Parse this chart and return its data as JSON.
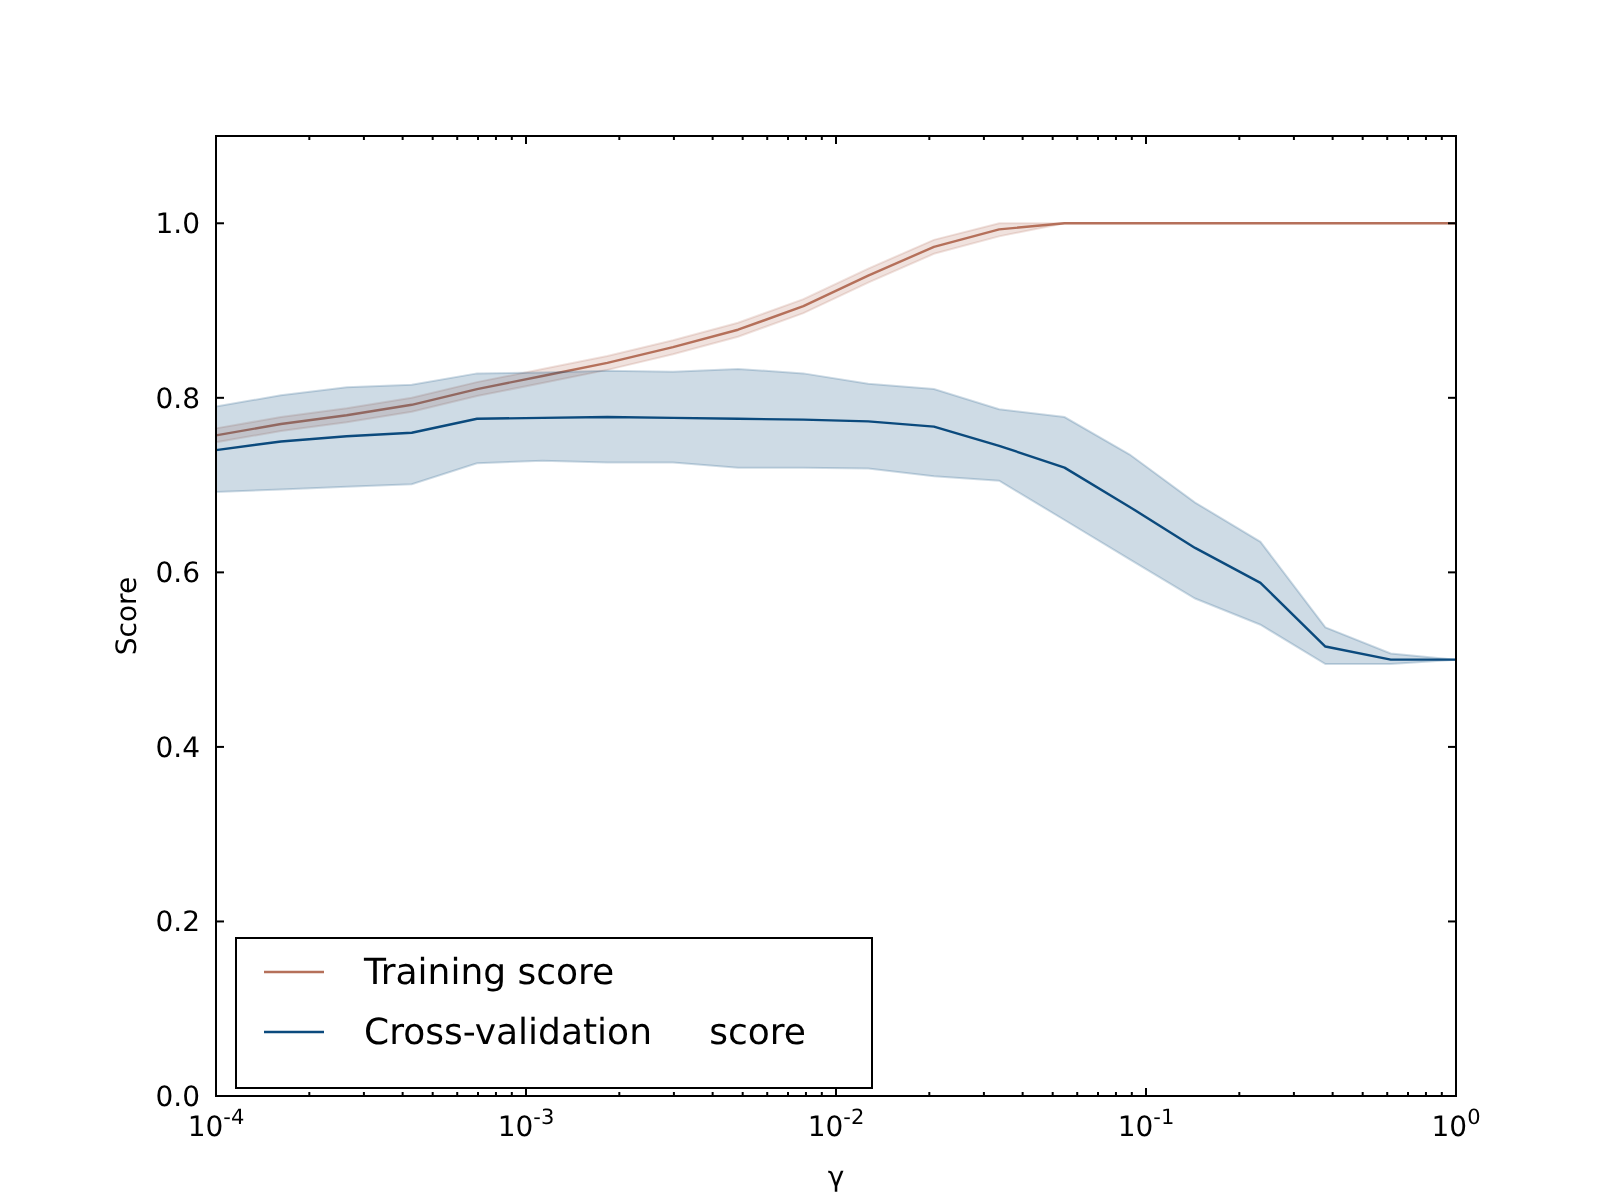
{
  "chart_data": {
    "type": "line",
    "xlabel": "γ",
    "ylabel": "Score",
    "log": "x",
    "xlim": [
      0.0001,
      1
    ],
    "ylim": [
      0,
      1.1
    ],
    "xticks": [
      {
        "value": 0.0001,
        "label": "10$^{-4}$"
      },
      {
        "value": 0.0002,
        "label": null
      },
      {
        "value": 0.0003,
        "label": null
      },
      {
        "value": 0.0004,
        "label": null
      },
      {
        "value": 0.0005,
        "label": null
      },
      {
        "value": 0.0006,
        "label": null
      },
      {
        "value": 0.0007,
        "label": null
      },
      {
        "value": 0.0008,
        "label": null
      },
      {
        "value": 0.0009,
        "label": null
      },
      {
        "value": 0.001,
        "label": "10$^{-3}$"
      },
      {
        "value": 0.002,
        "label": null
      },
      {
        "value": 0.003,
        "label": null
      },
      {
        "value": 0.004,
        "label": null
      },
      {
        "value": 0.005,
        "label": null
      },
      {
        "value": 0.006,
        "label": null
      },
      {
        "value": 0.007,
        "label": null
      },
      {
        "value": 0.008,
        "label": null
      },
      {
        "value": 0.009,
        "label": null
      },
      {
        "value": 0.01,
        "label": "10$^{-2}$"
      },
      {
        "value": 0.02,
        "label": null
      },
      {
        "value": 0.03,
        "label": null
      },
      {
        "value": 0.04,
        "label": null
      },
      {
        "value": 0.05,
        "label": null
      },
      {
        "value": 0.06,
        "label": null
      },
      {
        "value": 0.07,
        "label": null
      },
      {
        "value": 0.08,
        "label": null
      },
      {
        "value": 0.09,
        "label": null
      },
      {
        "value": 0.1,
        "label": "10$^{-1}$"
      },
      {
        "value": 0.2,
        "label": null
      },
      {
        "value": 0.3,
        "label": null
      },
      {
        "value": 0.4,
        "label": null
      },
      {
        "value": 0.5,
        "label": null
      },
      {
        "value": 0.6,
        "label": null
      },
      {
        "value": 0.7,
        "label": null
      },
      {
        "value": 0.8,
        "label": null
      },
      {
        "value": 0.9,
        "label": null
      },
      {
        "value": 1,
        "label": "10$^{0}$"
      }
    ],
    "yticks": [
      {
        "value": 0,
        "label": "0.0"
      },
      {
        "value": 0.2,
        "label": "0.2"
      },
      {
        "value": 0.4,
        "label": "0.4"
      },
      {
        "value": 0.6,
        "label": "0.6"
      },
      {
        "value": 0.8,
        "label": "0.8"
      },
      {
        "value": 1,
        "label": "1.0"
      }
    ],
    "x": [
      0.0001,
      0.000162,
      0.000264,
      0.000428,
      0.000695,
      0.00113,
      0.00183,
      0.00298,
      0.00483,
      0.00785,
      0.0127,
      0.0207,
      0.0336,
      0.0546,
      0.0886,
      0.144,
      0.234,
      0.379,
      0.616,
      1
    ],
    "legend": "bottom left",
    "grid": false,
    "marker": "none",
    "line_style": "solid",
    "series": [
      {
        "name": "Training score",
        "color": "#b5705a",
        "values": [
          0.757,
          0.77,
          0.78,
          0.792,
          0.81,
          0.825,
          0.84,
          0.858,
          0.878,
          0.905,
          0.94,
          0.973,
          0.993,
          1,
          1,
          1,
          1,
          1,
          1,
          1
        ],
        "lower": [
          0.749,
          0.762,
          0.772,
          0.784,
          0.802,
          0.817,
          0.832,
          0.85,
          0.87,
          0.897,
          0.932,
          0.965,
          0.985,
          1,
          1,
          1,
          1,
          1,
          1,
          1
        ],
        "upper": [
          0.765,
          0.778,
          0.788,
          0.8,
          0.818,
          0.833,
          0.848,
          0.866,
          0.886,
          0.913,
          0.948,
          0.981,
          1,
          1,
          1,
          1,
          1,
          1,
          1,
          1
        ]
      },
      {
        "name": "Cross-validation     score",
        "color": "#0b4a7d",
        "values": [
          0.74,
          0.75,
          0.756,
          0.76,
          0.776,
          0.777,
          0.778,
          0.777,
          0.776,
          0.775,
          0.773,
          0.767,
          0.745,
          0.72,
          0.675,
          0.628,
          0.588,
          0.515,
          0.5,
          0.5
        ],
        "lower": [
          0.692,
          0.695,
          0.698,
          0.701,
          0.725,
          0.728,
          0.726,
          0.726,
          0.72,
          0.72,
          0.719,
          0.71,
          0.705,
          0.66,
          0.615,
          0.57,
          0.54,
          0.495,
          0.495,
          0.5
        ],
        "upper": [
          0.79,
          0.803,
          0.812,
          0.815,
          0.828,
          0.829,
          0.831,
          0.83,
          0.833,
          0.828,
          0.816,
          0.81,
          0.787,
          0.778,
          0.735,
          0.68,
          0.635,
          0.537,
          0.507,
          0.5
        ]
      }
    ]
  }
}
